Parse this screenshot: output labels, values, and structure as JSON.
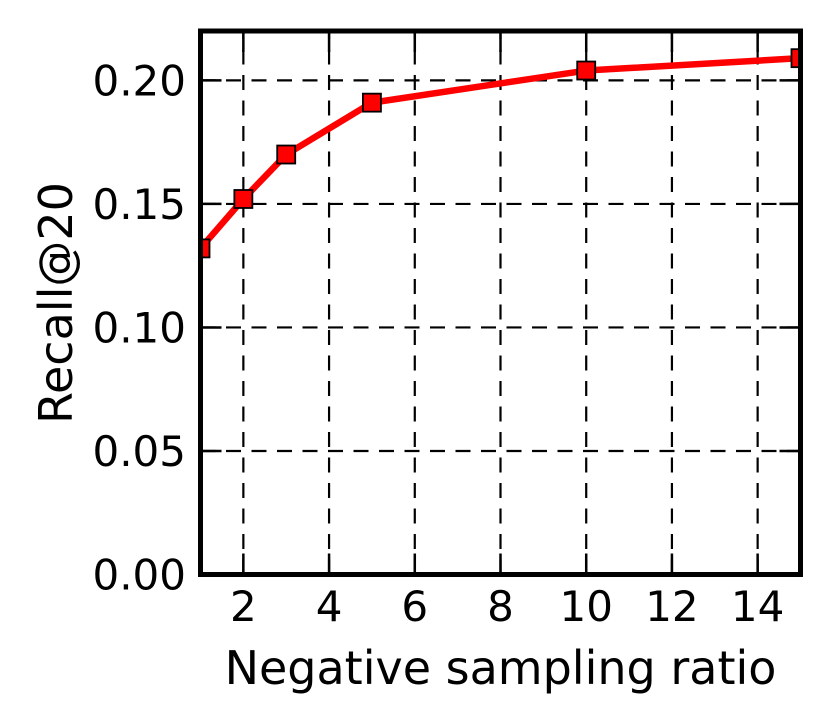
{
  "figure": {
    "background_color": "#ffffff"
  },
  "chart_data": {
    "type": "line",
    "title": "",
    "xlabel": "Negative sampling ratio",
    "ylabel": "Recall@20",
    "x": [
      1,
      2,
      3,
      5,
      10,
      15
    ],
    "y": [
      0.132,
      0.152,
      0.17,
      0.191,
      0.204,
      0.209
    ],
    "xlim": [
      1,
      15
    ],
    "ylim": [
      0,
      0.22
    ],
    "xticks": [
      2,
      4,
      6,
      8,
      10,
      12,
      14
    ],
    "xtick_labels": [
      "2",
      "4",
      "6",
      "8",
      "10",
      "12",
      "14"
    ],
    "yticks": [
      0.0,
      0.05,
      0.1,
      0.15,
      0.2
    ],
    "ytick_labels": [
      "0.00",
      "0.05",
      "0.10",
      "0.15",
      "0.20"
    ],
    "grid": true,
    "grid_line_style": "dashed",
    "grid_color": "#000000",
    "tick_direction": "in",
    "line_color": "#ff0000",
    "marker": "square",
    "marker_fill_color": "#ff0000",
    "marker_edge_color": "#000000",
    "axis_color": "#000000",
    "legend": null
  }
}
